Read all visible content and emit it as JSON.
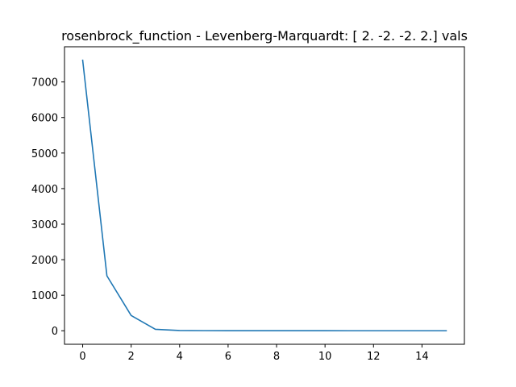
{
  "chart_data": {
    "type": "line",
    "title": "rosenbrock_function - Levenberg-Marquardt: [ 2. -2. -2.  2.] vals",
    "xlabel": "",
    "ylabel": "",
    "xlim": [
      -0.75,
      15.75
    ],
    "ylim": [
      -380,
      7990
    ],
    "x_ticks": [
      0,
      2,
      4,
      6,
      8,
      10,
      12,
      14
    ],
    "y_ticks": [
      0,
      1000,
      2000,
      3000,
      4000,
      5000,
      6000,
      7000
    ],
    "grid": false,
    "series": [
      {
        "color": "#1f77b4",
        "x": [
          0,
          1,
          2,
          3,
          4,
          5,
          6,
          7,
          8,
          9,
          10,
          11,
          12,
          13,
          14,
          15
        ],
        "y": [
          7610,
          1545,
          430,
          40,
          8,
          3,
          1.5,
          1,
          0.6,
          0.4,
          0.3,
          0.2,
          0.1,
          0.1,
          0.05,
          0.03
        ]
      }
    ]
  }
}
